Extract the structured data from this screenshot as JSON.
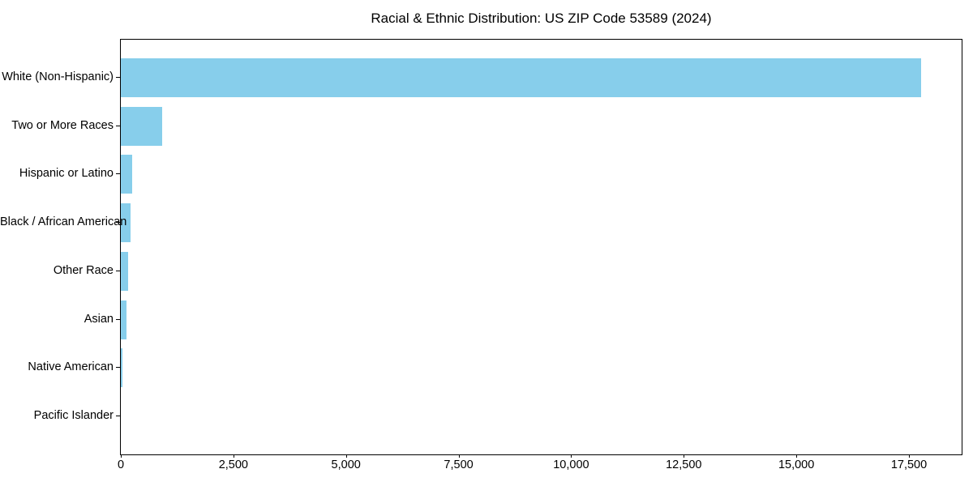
{
  "chart_data": {
    "type": "bar",
    "orientation": "horizontal",
    "title": "Racial & Ethnic Distribution: US ZIP Code 53589 (2024)",
    "categories": [
      "White (Non-Hispanic)",
      "Two or More Races",
      "Hispanic or Latino",
      "Black / African American",
      "Other Race",
      "Asian",
      "Native American",
      "Pacific Islander"
    ],
    "values": [
      17775,
      910,
      250,
      220,
      155,
      130,
      45,
      0
    ],
    "bar_color": "#87CEEB",
    "xlabel": "",
    "ylabel": "",
    "xlim": [
      0,
      18670
    ],
    "xticks": {
      "values": [
        0,
        2500,
        5000,
        7500,
        10000,
        12500,
        15000,
        17500
      ],
      "labels": [
        "0",
        "2,500",
        "5,000",
        "7,500",
        "10,000",
        "12,500",
        "15,000",
        "17,500"
      ]
    },
    "grid": false,
    "legend": null,
    "background_color": "#ffffff",
    "text_color": "#000000"
  }
}
